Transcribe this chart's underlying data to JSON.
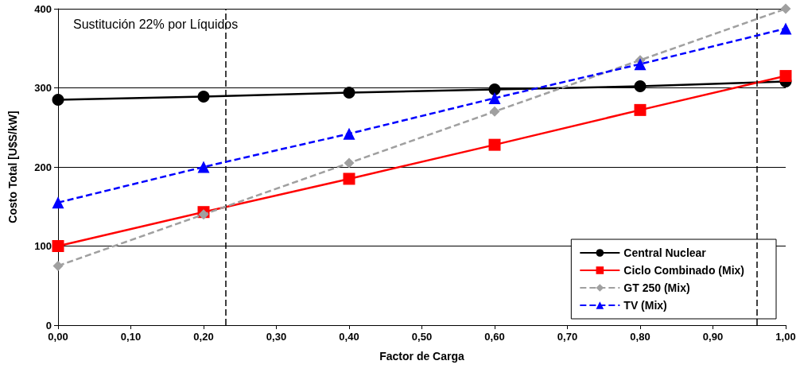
{
  "chart_data": {
    "type": "line",
    "xlabel": "Factor de Carga",
    "ylabel": "Costo Total [U$S/kW]",
    "annotations": [
      "Sustitución 22% por Líquidos"
    ],
    "x": [
      0,
      0.2,
      0.4,
      0.6,
      0.8,
      1.0
    ],
    "series": [
      {
        "name": "Central Nuclear",
        "color": "#000000",
        "marker": "circle",
        "line_style": "solid",
        "values": [
          285,
          289,
          294,
          298,
          302,
          308
        ]
      },
      {
        "name": "Ciclo Combinado (Mix)",
        "color": "#ff0000",
        "marker": "square",
        "line_style": "solid",
        "values": [
          100,
          143,
          185,
          228,
          272,
          315
        ]
      },
      {
        "name": "GT 250 (Mix)",
        "color": "#a0a0a0",
        "marker": "diamond",
        "line_style": "dashed",
        "values": [
          75,
          140,
          205,
          270,
          335,
          400
        ]
      },
      {
        "name": "TV (Mix)",
        "color": "#0000ff",
        "marker": "triangle",
        "line_style": "dashed",
        "values": [
          155,
          200,
          242,
          287,
          330,
          375
        ]
      }
    ],
    "xlim": [
      0,
      1
    ],
    "ylim": [
      0,
      400
    ],
    "xticks": [
      {
        "value": 0,
        "label": "0,00"
      },
      {
        "value": 0.1,
        "label": "0,10"
      },
      {
        "value": 0.2,
        "label": "0,20"
      },
      {
        "value": 0.3,
        "label": "0,30"
      },
      {
        "value": 0.4,
        "label": "0,40"
      },
      {
        "value": 0.5,
        "label": "0,50"
      },
      {
        "value": 0.6,
        "label": "0,60"
      },
      {
        "value": 0.7,
        "label": "0,70"
      },
      {
        "value": 0.8,
        "label": "0,80"
      },
      {
        "value": 0.9,
        "label": "0,90"
      },
      {
        "value": 1.0,
        "label": "1,00"
      }
    ],
    "yticks": [
      0,
      100,
      200,
      300,
      400
    ],
    "ref_lines": [
      {
        "axis": "x",
        "value": 0.23,
        "color": "#000000",
        "line_style": "dashed"
      },
      {
        "axis": "x",
        "value": 0.96,
        "color": "#000000",
        "line_style": "dashed"
      }
    ],
    "grid": "y",
    "legend": "bottom right"
  }
}
